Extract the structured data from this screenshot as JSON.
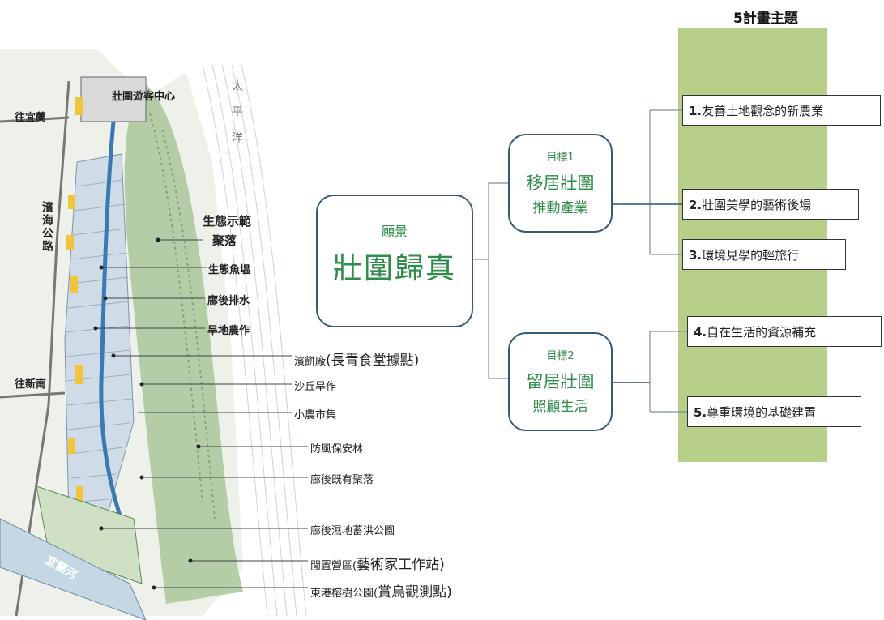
{
  "map": {
    "labels": {
      "visitor_center": "壯圍遊客中心",
      "to_yilan": "往宜蘭",
      "qinghe_road": "濱海公路",
      "to_xinnan": "往新南",
      "pacific_ocean": "太平洋",
      "lanyang_river": "宜蘭河"
    },
    "callouts": [
      {
        "text": "生態示範",
        "big": ""
      },
      {
        "text": "聚落",
        "big": ""
      },
      {
        "text": "生態魚塭",
        "big": ""
      },
      {
        "text": "廍後排水",
        "big": ""
      },
      {
        "text": "旱地農作",
        "big": ""
      },
      {
        "text": "濱餅廠",
        "big": "(長青食堂據點)"
      },
      {
        "text": "沙丘旱作",
        "big": ""
      },
      {
        "text": "小農市集",
        "big": ""
      },
      {
        "text": "防風保安林",
        "big": ""
      },
      {
        "text": "廍後既有聚落",
        "big": ""
      },
      {
        "text": "廍後濕地蓄洪公園",
        "big": ""
      },
      {
        "text": "閒置營區(",
        "big": "藝術家工作站)"
      },
      {
        "text": "東港榕樹公園(",
        "big": "賞鳥觀測點)"
      }
    ]
  },
  "diagram": {
    "title": "5計畫主題",
    "vision": {
      "label": "願景",
      "title": "壯圍歸真"
    },
    "goals": [
      {
        "label": "目標1",
        "title": "移居壯圍",
        "subtitle": "推動產業"
      },
      {
        "label": "目標2",
        "title": "留居壯圍",
        "subtitle": "照顧生活"
      }
    ],
    "topics": [
      {
        "num": "1.",
        "text": "友善土地觀念的新農業"
      },
      {
        "num": "2.",
        "text": "壯圍美學的藝術後場"
      },
      {
        "num": "3.",
        "text": "環境見學的輕旅行"
      },
      {
        "num": "4.",
        "text": "自在生活的資源補充"
      },
      {
        "num": "5.",
        "text": "尊重環境的基礎建置"
      }
    ]
  },
  "colors": {
    "green_panel": "#b8cf8a",
    "green_text": "#2f8d4a",
    "box_border": "#345b77"
  }
}
